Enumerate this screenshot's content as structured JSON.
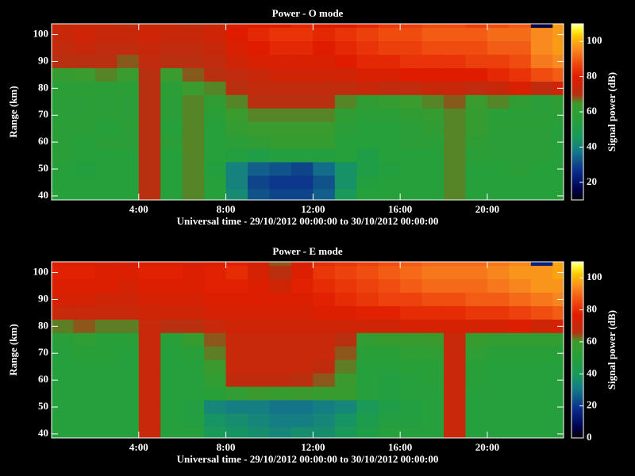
{
  "colorscale": [
    [
      0,
      "#000000"
    ],
    [
      0.06,
      "#00004a"
    ],
    [
      0.16,
      "#0a2a8a"
    ],
    [
      0.28,
      "#157a8a"
    ],
    [
      0.36,
      "#189a5a"
    ],
    [
      0.46,
      "#26a03a"
    ],
    [
      0.55,
      "#3c9a2c"
    ],
    [
      0.6,
      "#b83010"
    ],
    [
      0.7,
      "#e01c00"
    ],
    [
      0.78,
      "#f04c10"
    ],
    [
      0.86,
      "#f88a20"
    ],
    [
      0.93,
      "#ffc400"
    ],
    [
      0.98,
      "#ffff40"
    ],
    [
      1,
      "#ffffc0"
    ]
  ],
  "chart_data": [
    {
      "type": "heatmap",
      "title": "Power - O mode",
      "xlabel": "Universal time - 29/10/2012 00:00:00 to 30/10/2012 00:00:00",
      "ylabel": "Range (km)",
      "colorbar_label": "Signal power (dB)",
      "x": [
        0.5,
        1.5,
        2.5,
        3.5,
        4.5,
        5.5,
        6.5,
        7.5,
        8.5,
        9.5,
        10.5,
        11.5,
        12.5,
        13.5,
        14.5,
        15.5,
        16.5,
        17.5,
        18.5,
        19.5,
        20.5,
        21.5,
        22.5,
        23.5
      ],
      "y": [
        105,
        100,
        95,
        90,
        85,
        80,
        75,
        70,
        65,
        60,
        55,
        50,
        45,
        40
      ],
      "z": [
        [
          74,
          74,
          74,
          72,
          74,
          74,
          72,
          74,
          78,
          80,
          80,
          82,
          80,
          80,
          82,
          85,
          86,
          88,
          88,
          86,
          88,
          90,
          15,
          98
        ],
        [
          74,
          76,
          74,
          74,
          76,
          74,
          74,
          76,
          80,
          82,
          84,
          84,
          82,
          84,
          86,
          88,
          88,
          90,
          90,
          90,
          92,
          92,
          96,
          98
        ],
        [
          72,
          74,
          72,
          72,
          74,
          72,
          72,
          74,
          78,
          80,
          82,
          82,
          80,
          82,
          84,
          86,
          86,
          88,
          88,
          88,
          90,
          90,
          96,
          98
        ],
        [
          70,
          70,
          70,
          68,
          72,
          70,
          70,
          72,
          76,
          78,
          78,
          78,
          78,
          80,
          82,
          82,
          84,
          84,
          84,
          86,
          86,
          88,
          94,
          96
        ],
        [
          62,
          64,
          66,
          64,
          70,
          64,
          68,
          70,
          72,
          74,
          76,
          76,
          76,
          76,
          78,
          78,
          80,
          80,
          80,
          80,
          82,
          84,
          88,
          90
        ],
        [
          58,
          58,
          58,
          58,
          70,
          58,
          64,
          66,
          70,
          72,
          72,
          72,
          72,
          72,
          74,
          72,
          72,
          74,
          74,
          72,
          74,
          78,
          72,
          76
        ],
        [
          58,
          58,
          58,
          58,
          70,
          58,
          66,
          60,
          66,
          70,
          70,
          70,
          70,
          66,
          60,
          62,
          64,
          66,
          68,
          64,
          66,
          60,
          58,
          60
        ],
        [
          58,
          58,
          58,
          58,
          70,
          58,
          66,
          58,
          64,
          66,
          66,
          66,
          66,
          60,
          58,
          58,
          60,
          62,
          66,
          62,
          58,
          58,
          58,
          58
        ],
        [
          58,
          58,
          56,
          58,
          70,
          56,
          66,
          56,
          62,
          64,
          64,
          64,
          64,
          58,
          56,
          56,
          58,
          60,
          66,
          62,
          58,
          58,
          58,
          56
        ],
        [
          58,
          56,
          58,
          58,
          70,
          58,
          66,
          56,
          58,
          60,
          62,
          62,
          62,
          56,
          56,
          56,
          58,
          58,
          66,
          60,
          58,
          58,
          58,
          56
        ],
        [
          58,
          56,
          56,
          56,
          70,
          56,
          66,
          56,
          54,
          52,
          54,
          54,
          54,
          56,
          52,
          56,
          56,
          56,
          66,
          58,
          58,
          58,
          58,
          56
        ],
        [
          56,
          54,
          56,
          56,
          70,
          56,
          66,
          54,
          40,
          34,
          32,
          30,
          36,
          44,
          52,
          54,
          56,
          56,
          66,
          56,
          56,
          58,
          56,
          56
        ],
        [
          56,
          56,
          56,
          56,
          70,
          56,
          66,
          56,
          40,
          30,
          28,
          28,
          32,
          44,
          54,
          56,
          56,
          56,
          66,
          56,
          56,
          56,
          56,
          56
        ],
        [
          56,
          56,
          56,
          56,
          70,
          56,
          66,
          56,
          42,
          32,
          30,
          30,
          34,
          46,
          56,
          56,
          56,
          56,
          66,
          56,
          56,
          56,
          56,
          56
        ]
      ],
      "xlim": [
        0,
        23.5
      ],
      "ylim": [
        38.5,
        104
      ],
      "xticks": [
        {
          "value": 4,
          "label": "4:00"
        },
        {
          "value": 8,
          "label": "8:00"
        },
        {
          "value": 12,
          "label": "12:00"
        },
        {
          "value": 16,
          "label": "16:00"
        },
        {
          "value": 20,
          "label": "20:00"
        }
      ],
      "yticks": [
        40,
        50,
        60,
        70,
        80,
        90,
        100
      ],
      "zlim": [
        10,
        110
      ],
      "zticks": [
        20,
        40,
        60,
        80,
        100
      ]
    },
    {
      "type": "heatmap",
      "title": "Power - E mode",
      "xlabel": "Universal time - 29/10/2012 00:00:00 to 30/10/2012 00:00:00",
      "ylabel": "Range (km)",
      "colorbar_label": "Signal power (dB)",
      "x": [
        0.5,
        1.5,
        2.5,
        3.5,
        4.5,
        5.5,
        6.5,
        7.5,
        8.5,
        9.5,
        10.5,
        11.5,
        12.5,
        13.5,
        14.5,
        15.5,
        16.5,
        17.5,
        18.5,
        19.5,
        20.5,
        21.5,
        22.5,
        23.5
      ],
      "y": [
        105,
        100,
        95,
        90,
        85,
        80,
        75,
        70,
        65,
        60,
        55,
        50,
        45,
        40
      ],
      "z": [
        [
          76,
          76,
          74,
          74,
          76,
          76,
          74,
          76,
          78,
          72,
          64,
          74,
          80,
          82,
          84,
          86,
          88,
          90,
          90,
          90,
          92,
          94,
          15,
          98
        ],
        [
          78,
          78,
          76,
          76,
          78,
          78,
          76,
          78,
          80,
          74,
          66,
          76,
          82,
          84,
          86,
          88,
          90,
          92,
          92,
          92,
          94,
          96,
          96,
          98
        ],
        [
          76,
          76,
          76,
          74,
          76,
          76,
          76,
          78,
          78,
          76,
          72,
          78,
          80,
          82,
          84,
          86,
          88,
          90,
          90,
          90,
          92,
          94,
          96,
          96
        ],
        [
          74,
          74,
          72,
          72,
          74,
          74,
          74,
          76,
          76,
          76,
          76,
          76,
          78,
          80,
          82,
          84,
          84,
          86,
          86,
          88,
          88,
          90,
          92,
          94
        ],
        [
          70,
          70,
          70,
          70,
          72,
          72,
          72,
          74,
          74,
          74,
          74,
          74,
          76,
          76,
          78,
          78,
          80,
          80,
          80,
          82,
          82,
          84,
          86,
          88
        ],
        [
          62,
          64,
          62,
          62,
          70,
          66,
          66,
          70,
          72,
          72,
          72,
          72,
          72,
          72,
          72,
          72,
          74,
          74,
          74,
          74,
          74,
          76,
          72,
          74
        ],
        [
          52,
          54,
          52,
          52,
          70,
          52,
          58,
          64,
          70,
          70,
          70,
          70,
          70,
          66,
          56,
          58,
          58,
          60,
          70,
          58,
          56,
          56,
          56,
          56
        ],
        [
          50,
          52,
          52,
          50,
          70,
          50,
          52,
          62,
          70,
          70,
          70,
          70,
          70,
          64,
          52,
          52,
          54,
          54,
          70,
          54,
          52,
          52,
          52,
          52
        ],
        [
          50,
          50,
          50,
          50,
          70,
          50,
          50,
          60,
          70,
          70,
          70,
          70,
          68,
          62,
          50,
          50,
          52,
          52,
          70,
          52,
          50,
          50,
          50,
          50
        ],
        [
          50,
          50,
          50,
          50,
          70,
          50,
          50,
          56,
          68,
          68,
          68,
          66,
          64,
          60,
          50,
          48,
          50,
          52,
          70,
          52,
          50,
          50,
          50,
          50
        ],
        [
          50,
          50,
          50,
          50,
          70,
          50,
          50,
          52,
          56,
          60,
          58,
          60,
          58,
          58,
          50,
          48,
          50,
          50,
          70,
          50,
          50,
          50,
          50,
          50
        ],
        [
          50,
          50,
          50,
          50,
          70,
          50,
          48,
          34,
          32,
          32,
          30,
          30,
          32,
          34,
          40,
          46,
          48,
          50,
          70,
          50,
          50,
          50,
          50,
          50
        ],
        [
          50,
          50,
          50,
          50,
          70,
          50,
          48,
          38,
          36,
          34,
          32,
          32,
          34,
          38,
          44,
          48,
          48,
          50,
          70,
          50,
          50,
          50,
          50,
          50
        ],
        [
          50,
          50,
          50,
          50,
          70,
          50,
          50,
          40,
          38,
          36,
          34,
          36,
          36,
          40,
          46,
          50,
          50,
          50,
          70,
          50,
          50,
          50,
          50,
          50
        ]
      ],
      "xlim": [
        0,
        23.5
      ],
      "ylim": [
        38.5,
        104
      ],
      "xticks": [
        {
          "value": 4,
          "label": "4:00"
        },
        {
          "value": 8,
          "label": "8:00"
        },
        {
          "value": 12,
          "label": "12:00"
        },
        {
          "value": 16,
          "label": "16:00"
        },
        {
          "value": 20,
          "label": "20:00"
        }
      ],
      "yticks": [
        40,
        50,
        60,
        70,
        80,
        90,
        100
      ],
      "zlim": [
        0,
        110
      ],
      "zticks": [
        0,
        20,
        40,
        60,
        80,
        100
      ]
    }
  ]
}
